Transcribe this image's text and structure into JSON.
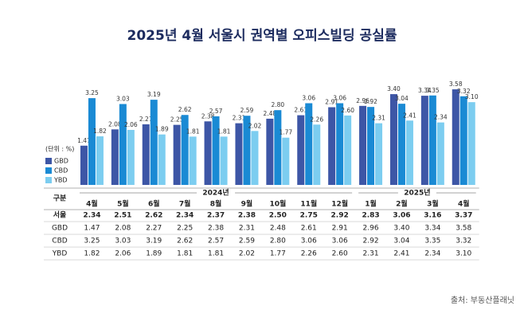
{
  "chart_data": {
    "type": "bar",
    "title": "2025년 4월 서울시 권역별 오피스빌딩 공실률",
    "unit": "(단위 : %)",
    "year_labels": [
      "2024년",
      "2025년"
    ],
    "categories": [
      "4월",
      "5월",
      "6월",
      "7월",
      "8월",
      "9월",
      "10월",
      "11월",
      "12월",
      "1월",
      "2월",
      "3월",
      "4월"
    ],
    "series": [
      {
        "name": "GBD",
        "color": "#3d56a6",
        "values": [
          1.47,
          2.08,
          2.27,
          2.25,
          2.38,
          2.31,
          2.48,
          2.61,
          2.91,
          2.96,
          3.4,
          3.34,
          3.58
        ],
        "value_labels": [
          "1.47",
          "2.08",
          "2.27",
          "2.25",
          "2.38",
          "2.31",
          "2.48",
          "2.61",
          "2.91",
          "2.96",
          "3.40",
          "3.34",
          "3.58"
        ]
      },
      {
        "name": "CBD",
        "color": "#1a8ad4",
        "values": [
          3.25,
          3.03,
          3.19,
          2.62,
          2.57,
          2.59,
          2.8,
          3.06,
          3.06,
          2.92,
          3.04,
          3.35,
          3.32
        ],
        "value_labels": [
          "3.25",
          "3.03",
          "3.19",
          "2.62",
          "2.57",
          "2.59",
          "2.80",
          "3.06",
          "3.06",
          "2.92",
          "3.04",
          "3.35",
          "3.32"
        ]
      },
      {
        "name": "YBD",
        "color": "#7ccdf0",
        "values": [
          1.82,
          2.06,
          1.89,
          1.81,
          1.81,
          2.02,
          1.77,
          2.26,
          2.6,
          2.31,
          2.41,
          2.34,
          3.1
        ],
        "value_labels": [
          "1.82",
          "2.06",
          "1.89",
          "1.81",
          "1.81",
          "2.02",
          "1.77",
          "2.26",
          "2.60",
          "2.31",
          "2.41",
          "2.34",
          "3.10"
        ]
      }
    ],
    "ylim": [
      0,
      4
    ]
  },
  "table": {
    "header": "구분",
    "rows": [
      {
        "name": "서울",
        "values": [
          "2.34",
          "2.51",
          "2.62",
          "2.34",
          "2.37",
          "2.38",
          "2.50",
          "2.75",
          "2.92",
          "2.83",
          "3.06",
          "3.16",
          "3.37"
        ]
      }
    ]
  },
  "source": "출처: 부동산플래닛"
}
